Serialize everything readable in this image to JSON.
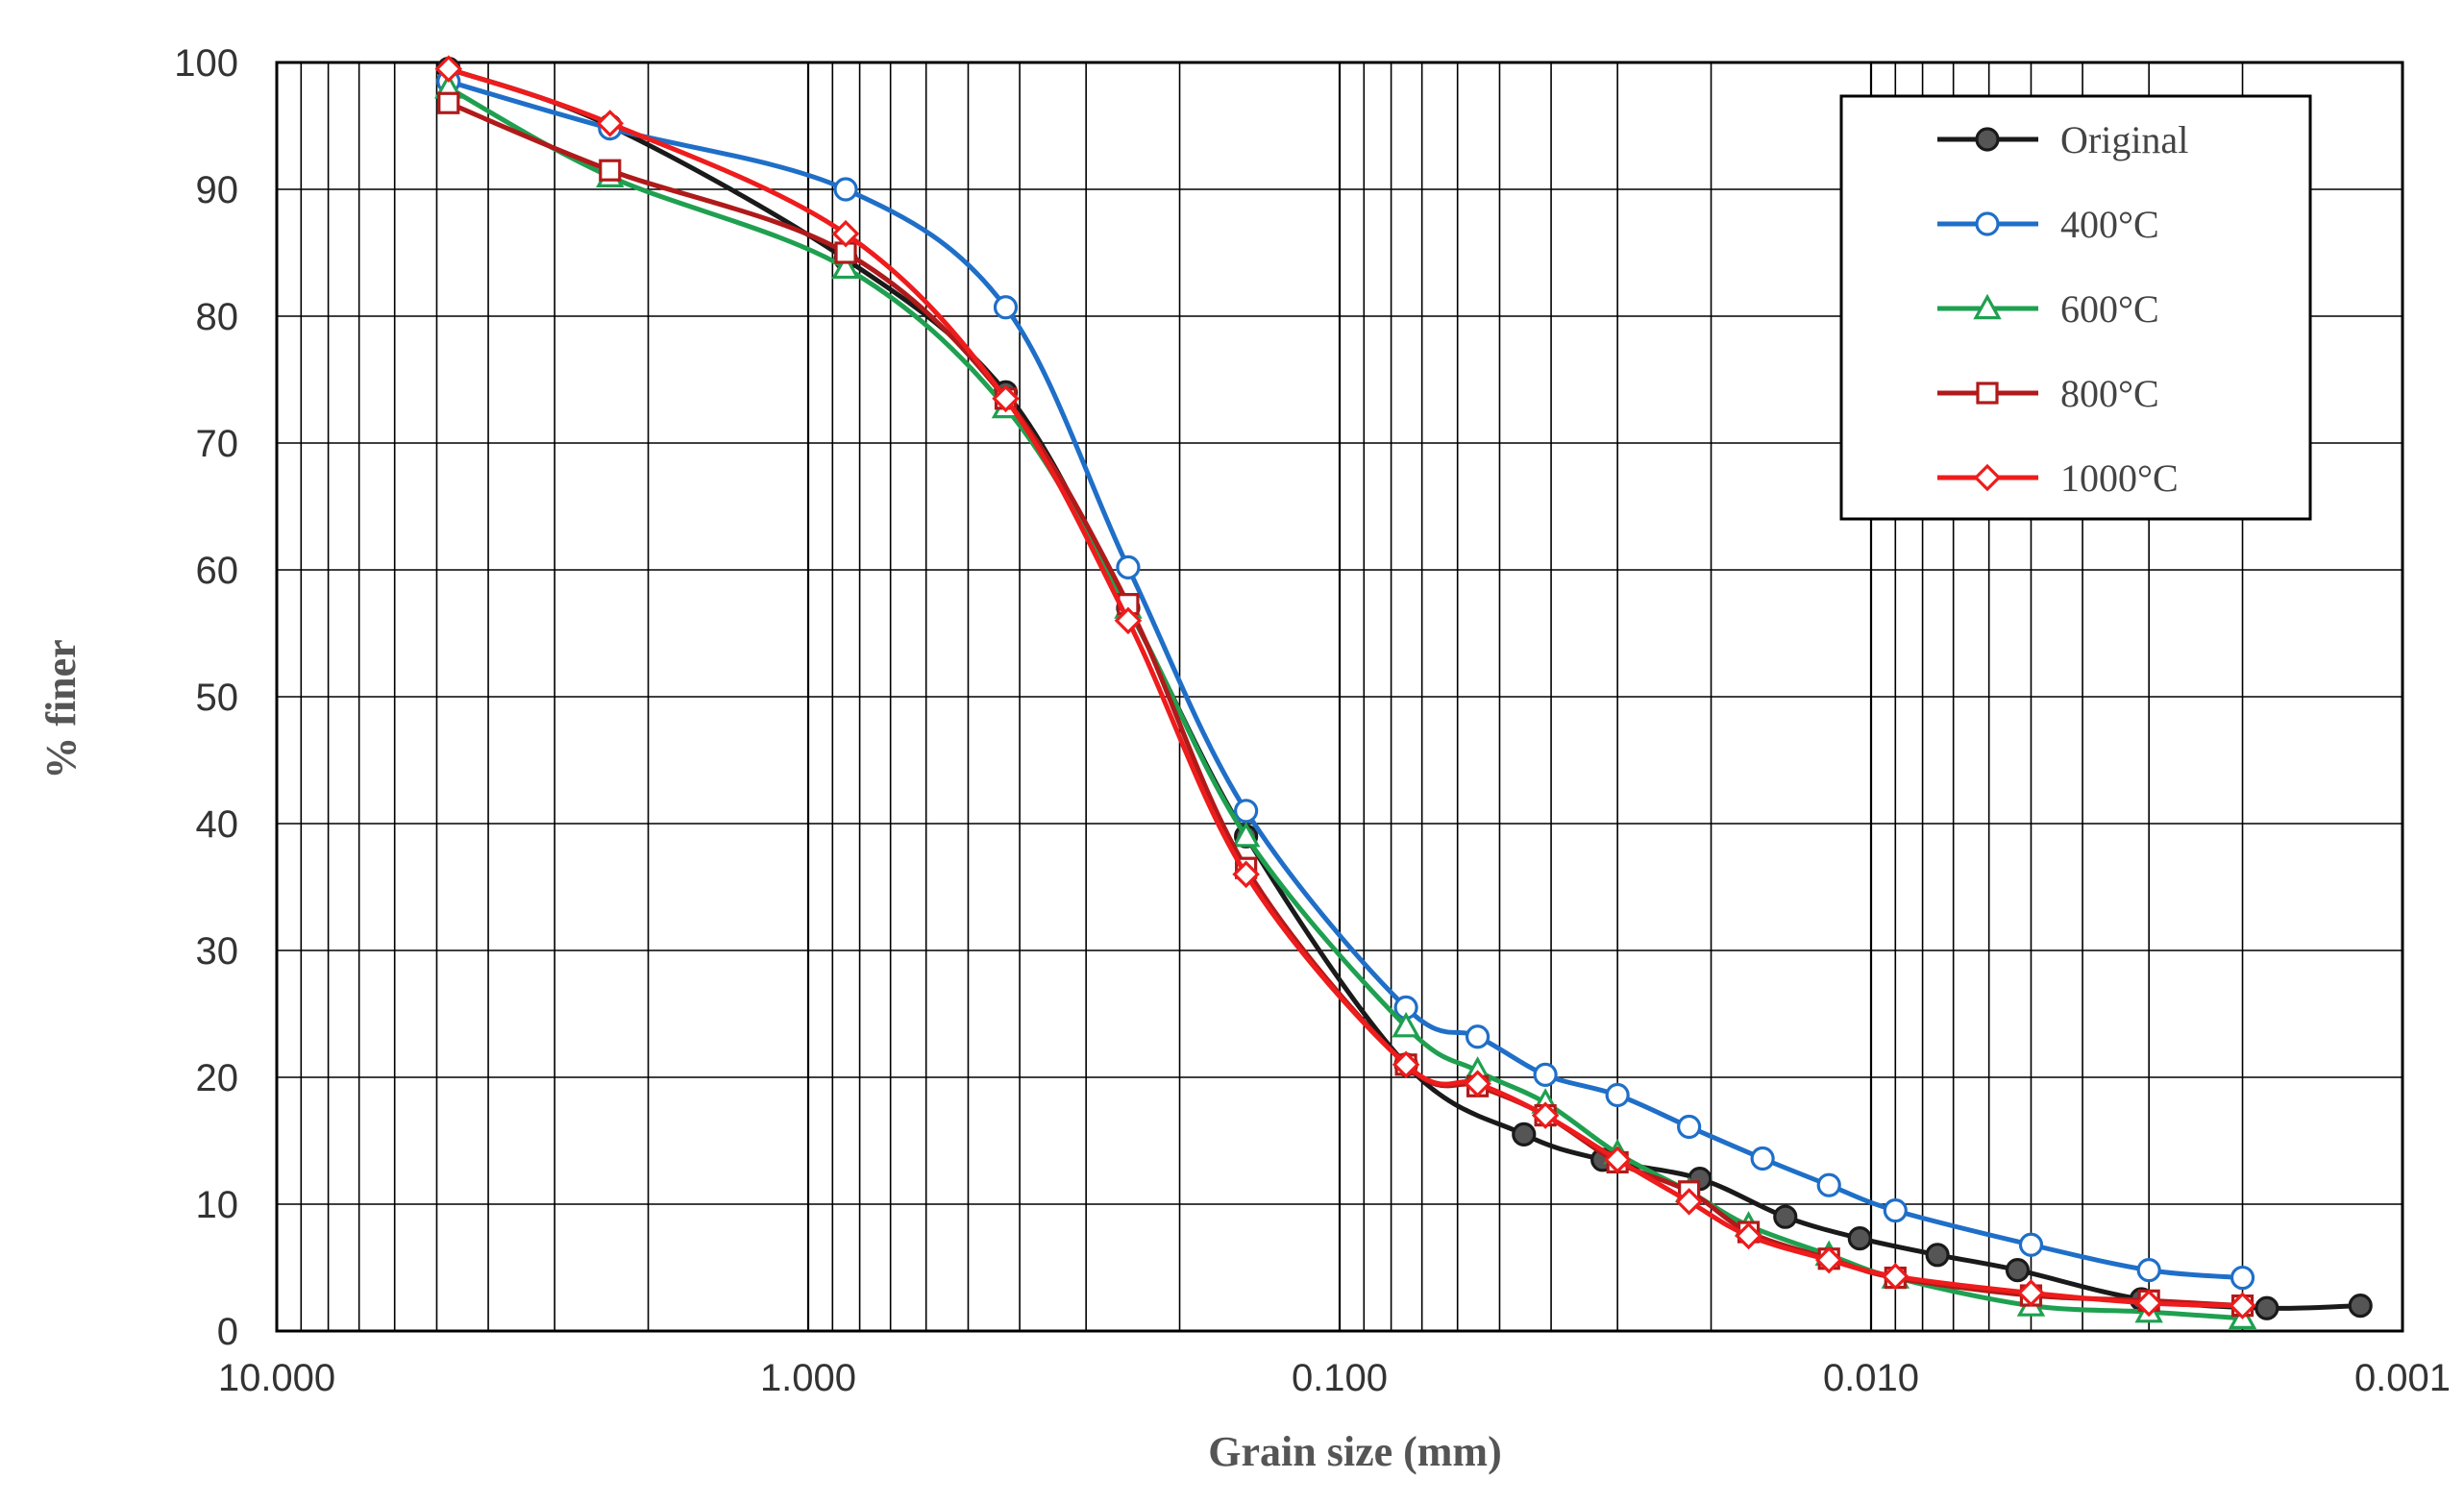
{
  "chart_data": {
    "type": "line",
    "xlabel": "Grain size (mm)",
    "ylabel": "% finer",
    "x_scale": "log",
    "x_reversed": true,
    "xlim": [
      10.0,
      0.001
    ],
    "ylim": [
      0,
      100
    ],
    "x_ticks": [
      10,
      1,
      0.1,
      0.01,
      0.001
    ],
    "x_tick_labels": [
      "10.000",
      "1.000",
      "0.100",
      "0.010",
      "0.001"
    ],
    "y_ticks": [
      0,
      10,
      20,
      30,
      40,
      50,
      60,
      70,
      80,
      90,
      100
    ],
    "y_tick_labels": [
      "0",
      "10",
      "20",
      "30",
      "40",
      "50",
      "60",
      "70",
      "80",
      "90",
      "100"
    ],
    "grid": true,
    "legend_position": "top-right",
    "series": [
      {
        "name": "Original",
        "color": "#1a1a1a",
        "marker": "filled-circle",
        "x": [
          4.75,
          2.36,
          0.85,
          0.425,
          0.25,
          0.15,
          0.075,
          0.045,
          0.032,
          0.021,
          0.0145,
          0.0105,
          0.0075,
          0.0053,
          0.0031,
          0.0018,
          0.0012
        ],
        "y": [
          99.5,
          95,
          84.5,
          74,
          57,
          39,
          21,
          15.5,
          13.5,
          12,
          9,
          7.3,
          6,
          4.8,
          2.5,
          1.8,
          2.0
        ]
      },
      {
        "name": "400°C",
        "color": "#1f6fc8",
        "marker": "open-circle",
        "x": [
          4.75,
          2.36,
          0.85,
          0.425,
          0.25,
          0.15,
          0.075,
          0.055,
          0.041,
          0.03,
          0.022,
          0.016,
          0.012,
          0.009,
          0.005,
          0.003,
          0.002
        ],
        "y": [
          98.5,
          94.8,
          90,
          80.7,
          60.2,
          41,
          25.5,
          23.2,
          20.2,
          18.6,
          16.1,
          13.6,
          11.5,
          9.5,
          6.8,
          4.8,
          4.2
        ]
      },
      {
        "name": "600°C",
        "color": "#1fa050",
        "marker": "open-triangle",
        "x": [
          4.75,
          2.36,
          0.85,
          0.425,
          0.25,
          0.15,
          0.075,
          0.055,
          0.041,
          0.03,
          0.022,
          0.017,
          0.012,
          0.009,
          0.005,
          0.003,
          0.002
        ],
        "y": [
          98,
          91,
          83.8,
          72.8,
          57,
          39,
          24,
          20.5,
          18,
          14,
          11,
          8.3,
          6,
          4.2,
          2,
          1.5,
          1
        ]
      },
      {
        "name": "800°C",
        "color": "#b01a1a",
        "marker": "open-square",
        "x": [
          4.75,
          2.36,
          0.85,
          0.425,
          0.25,
          0.15,
          0.075,
          0.055,
          0.041,
          0.03,
          0.022,
          0.017,
          0.012,
          0.009,
          0.005,
          0.003,
          0.002
        ],
        "y": [
          96.8,
          91.5,
          85,
          73.5,
          57.3,
          36.5,
          21,
          19.3,
          17,
          13.3,
          11,
          7.8,
          5.7,
          4.2,
          2.8,
          2.4,
          2
        ]
      },
      {
        "name": "1000°C",
        "color": "#ee1c1c",
        "marker": "open-diamond",
        "x": [
          4.75,
          2.36,
          0.85,
          0.425,
          0.25,
          0.15,
          0.075,
          0.055,
          0.041,
          0.03,
          0.022,
          0.017,
          0.012,
          0.009,
          0.005,
          0.003,
          0.002
        ],
        "y": [
          99.5,
          95.2,
          86.5,
          73.5,
          56,
          36,
          21,
          19.5,
          17,
          13.5,
          10.2,
          7.5,
          5.6,
          4.3,
          3,
          2.2,
          2
        ]
      }
    ]
  }
}
